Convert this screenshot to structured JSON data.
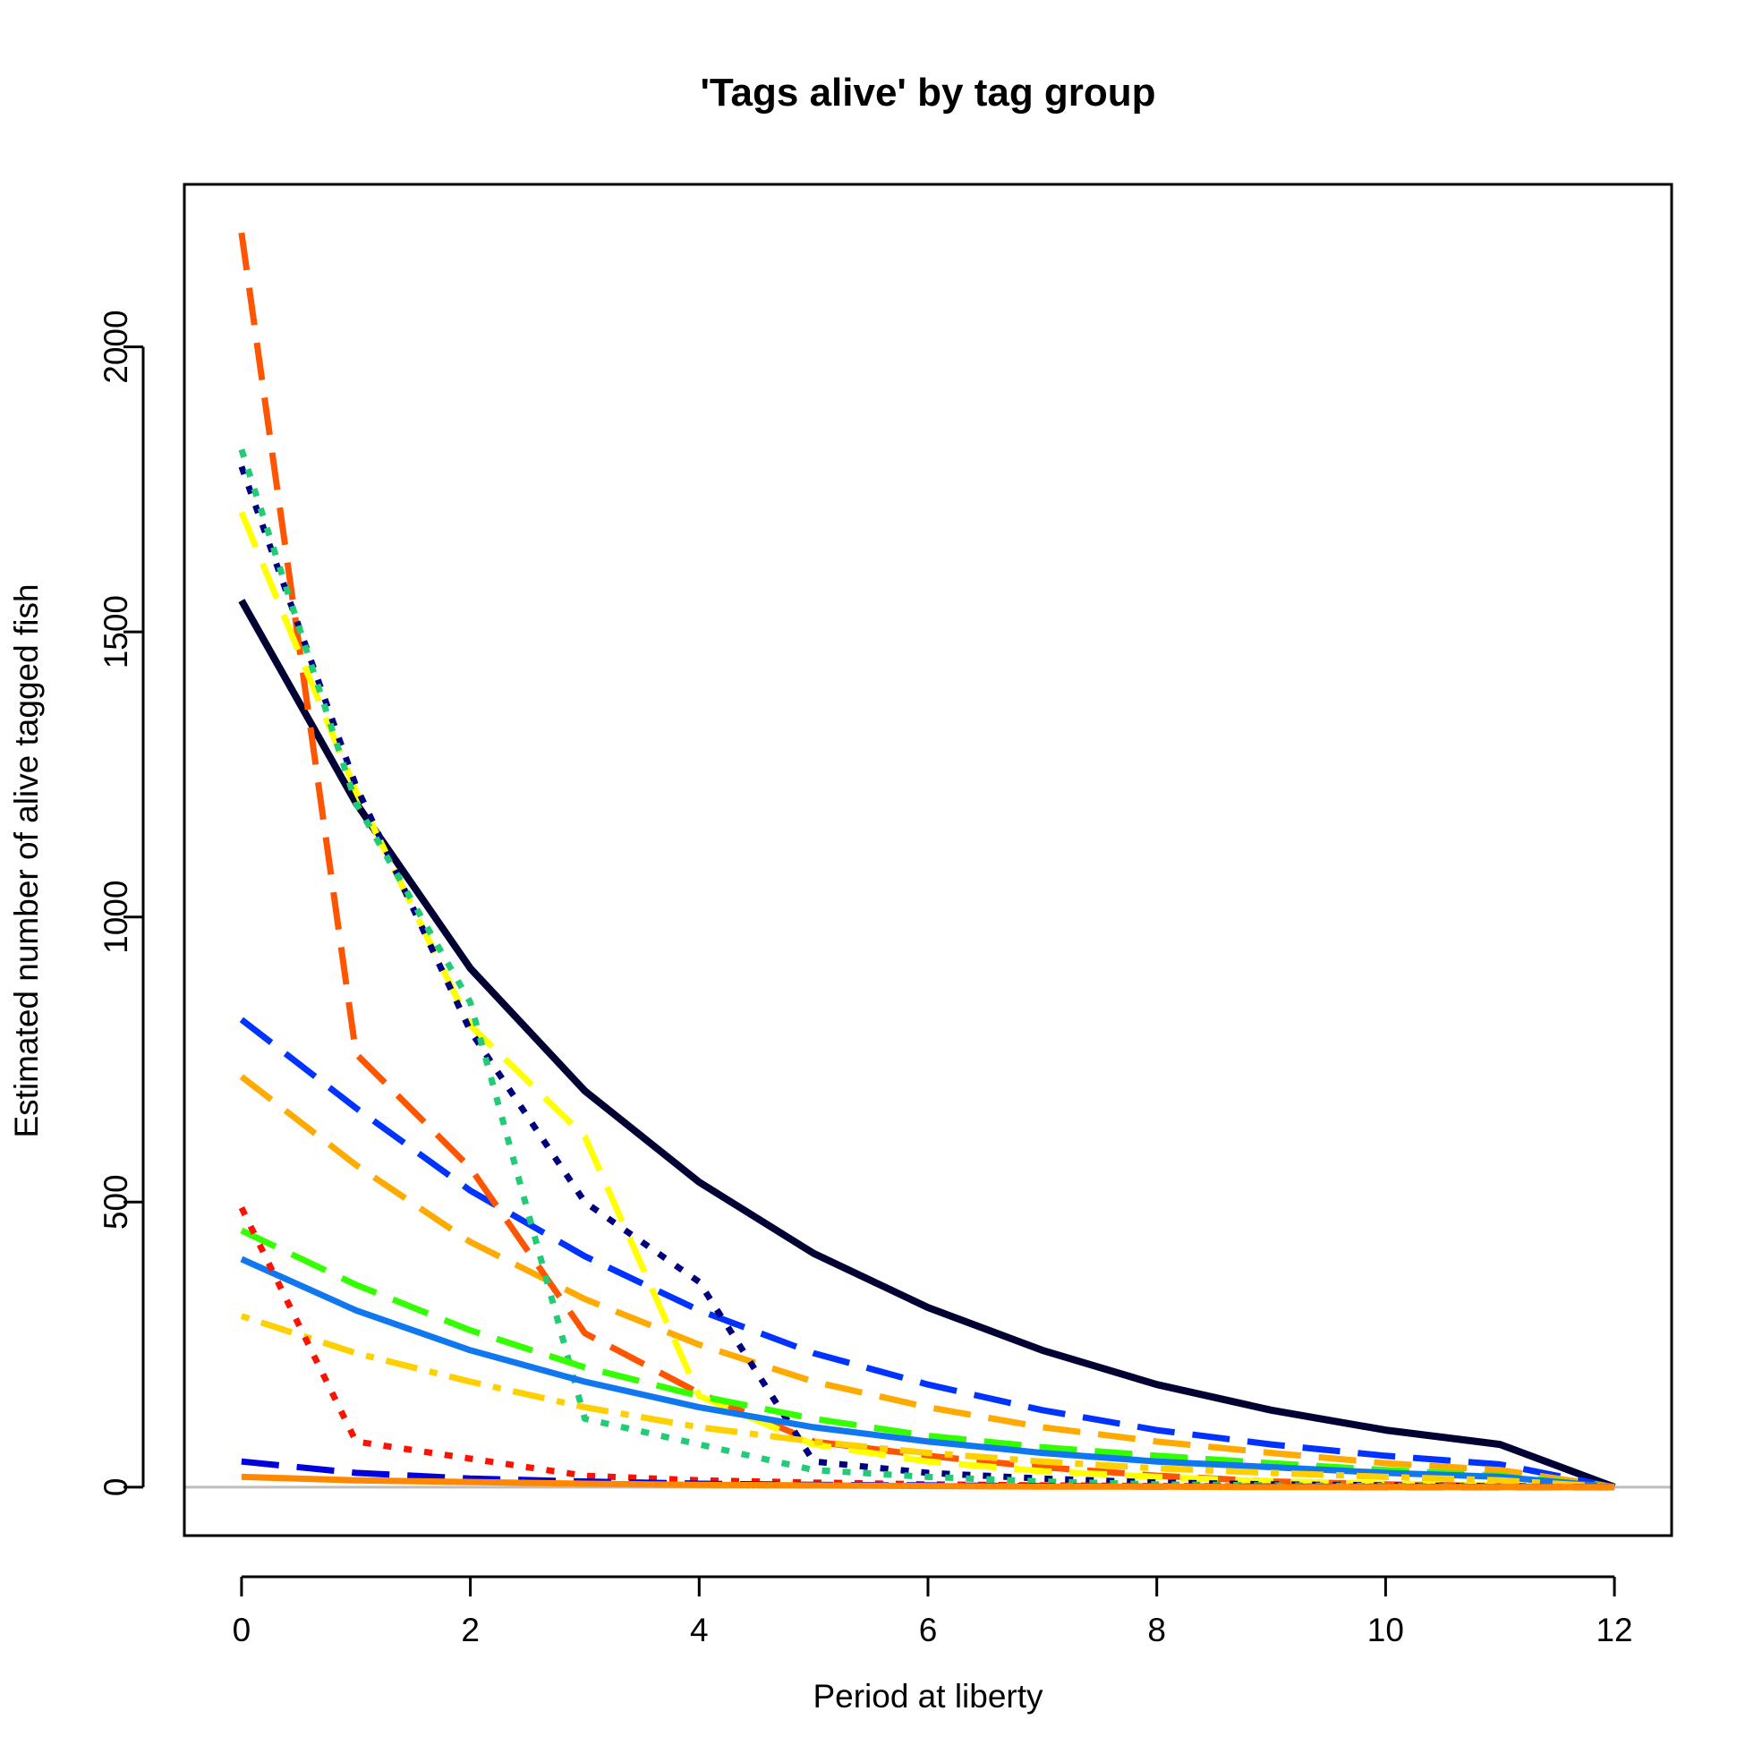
{
  "chart_data": {
    "type": "line",
    "title": "'Tags alive' by tag group",
    "xlabel": "Period at liberty",
    "ylabel": "Estimated number of alive tagged fish",
    "xlim": [
      -0.5,
      12.5
    ],
    "ylim": [
      -85,
      2285
    ],
    "x_ticks": [
      "0",
      "2",
      "4",
      "6",
      "8",
      "10",
      "12"
    ],
    "y_ticks": [
      "0",
      "500",
      "1000",
      "1500",
      "2000"
    ],
    "x": [
      0,
      1,
      2,
      3,
      4,
      5,
      6,
      7,
      8,
      9,
      10,
      11,
      12
    ],
    "reference_line": {
      "y": 0,
      "color": "#bebebe"
    },
    "series": [
      {
        "color": "#000033",
        "dash": "solid",
        "values": [
          1555,
          1200,
          910,
          695,
          535,
          410,
          315,
          240,
          180,
          135,
          100,
          75,
          0
        ]
      },
      {
        "color": "#0033ff",
        "dash": "longdash",
        "values": [
          820,
          665,
          520,
          405,
          310,
          235,
          180,
          135,
          100,
          75,
          55,
          40,
          0
        ]
      },
      {
        "color": "#ffaa00",
        "dash": "longdash",
        "values": [
          720,
          565,
          430,
          330,
          250,
          185,
          140,
          105,
          80,
          60,
          42,
          30,
          0
        ]
      },
      {
        "color": "#ff5500",
        "dash": "longdash",
        "values": [
          2200,
          760,
          560,
          270,
          165,
          80,
          55,
          35,
          20,
          10,
          5,
          2,
          0
        ]
      },
      {
        "color": "#ffff00",
        "dash": "longdash",
        "values": [
          1710,
          1220,
          810,
          615,
          160,
          75,
          45,
          28,
          18,
          10,
          6,
          3,
          0
        ]
      },
      {
        "color": "#00007f",
        "dash": "dotted",
        "values": [
          1790,
          1230,
          800,
          500,
          360,
          45,
          25,
          15,
          8,
          5,
          3,
          2,
          0
        ]
      },
      {
        "color": "#22cc77",
        "dash": "dotted",
        "values": [
          1820,
          1200,
          850,
          120,
          75,
          30,
          18,
          10,
          5,
          3,
          2,
          1,
          0
        ]
      },
      {
        "color": "#33ff00",
        "dash": "longdash",
        "values": [
          450,
          355,
          275,
          210,
          160,
          120,
          90,
          70,
          55,
          42,
          30,
          20,
          0
        ]
      },
      {
        "color": "#1177ee",
        "dash": "solid",
        "values": [
          400,
          310,
          240,
          185,
          140,
          105,
          80,
          60,
          45,
          35,
          25,
          18,
          0
        ]
      },
      {
        "color": "#ffd000",
        "dash": "dotdash",
        "values": [
          300,
          235,
          185,
          140,
          105,
          80,
          60,
          45,
          33,
          25,
          18,
          12,
          0
        ]
      },
      {
        "color": "#ff1100",
        "dash": "dotted",
        "values": [
          490,
          80,
          50,
          20,
          12,
          8,
          5,
          3,
          2,
          1,
          1,
          0,
          0
        ]
      },
      {
        "color": "#0000dd",
        "dash": "longdash",
        "values": [
          45,
          25,
          15,
          10,
          6,
          4,
          3,
          2,
          1,
          1,
          0,
          0,
          0
        ]
      },
      {
        "color": "#ff8800",
        "dash": "solid",
        "values": [
          18,
          12,
          9,
          6,
          4,
          3,
          2,
          1,
          1,
          0,
          0,
          0,
          0
        ]
      }
    ]
  }
}
